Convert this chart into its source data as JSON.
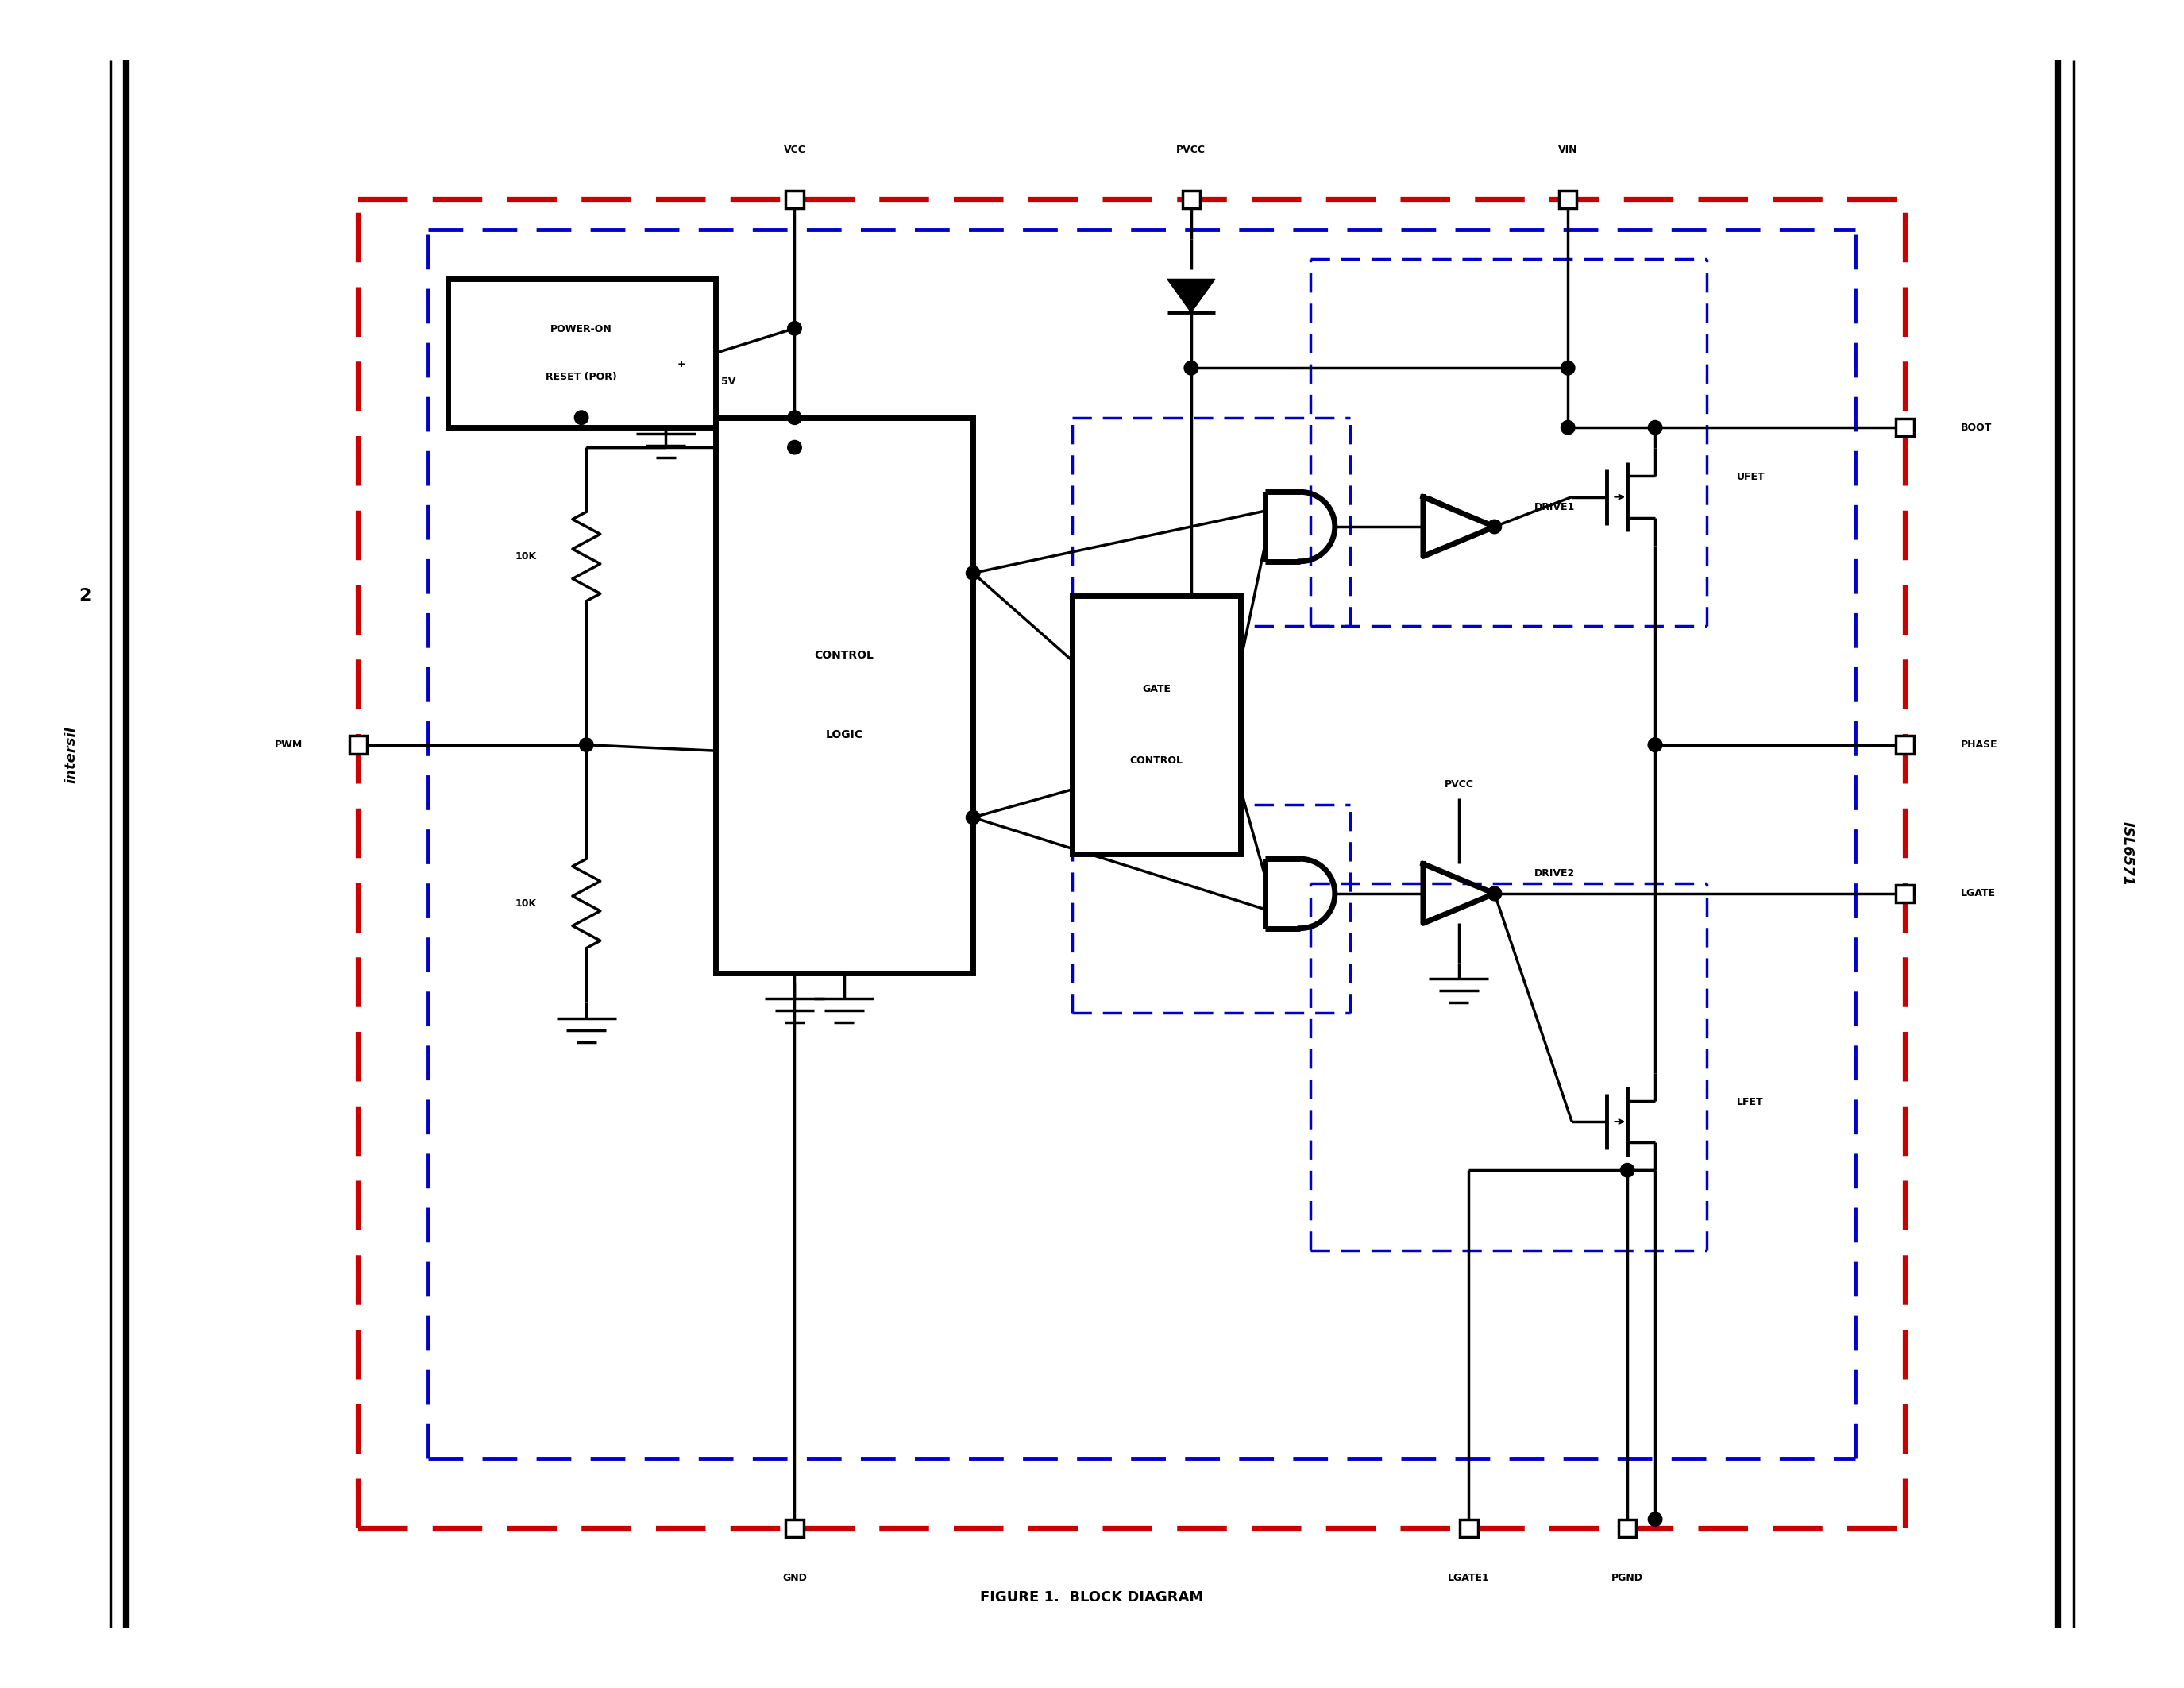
{
  "title": "FIGURE 1.  BLOCK DIAGRAM",
  "title_fontsize": 13,
  "bg_color": "#ffffff",
  "line_color": "#000000",
  "red_color": "#cc0000",
  "blue_color": "#0000cc",
  "page_num": "2",
  "chip_label": "ISL6571",
  "company": "intersil",
  "pin_labels": {
    "VCC": "VCC",
    "PVCC": "PVCC",
    "VIN": "VIN",
    "GND": "GND",
    "LGATE1": "LGATE1",
    "PGND": "PGND",
    "BOOT": "BOOT",
    "PHASE": "PHASE",
    "LGATE": "LGATE",
    "PWM": "PWM"
  },
  "por_text": [
    "POWER-ON",
    "RESET (POR)"
  ],
  "ctrl_text": [
    "CONTROL",
    "LOGIC"
  ],
  "gate_text": [
    "GATE",
    "CONTROL"
  ],
  "drive1_label": "DRIVE1",
  "drive2_label": "DRIVE2",
  "ufet_label": "UFET",
  "lfet_label": "LFET",
  "pvcc_label": "PVCC",
  "r1_label": "10K",
  "r2_label": "10K",
  "cap_label": "5V",
  "plus_label": "+",
  "minus_label": "-"
}
